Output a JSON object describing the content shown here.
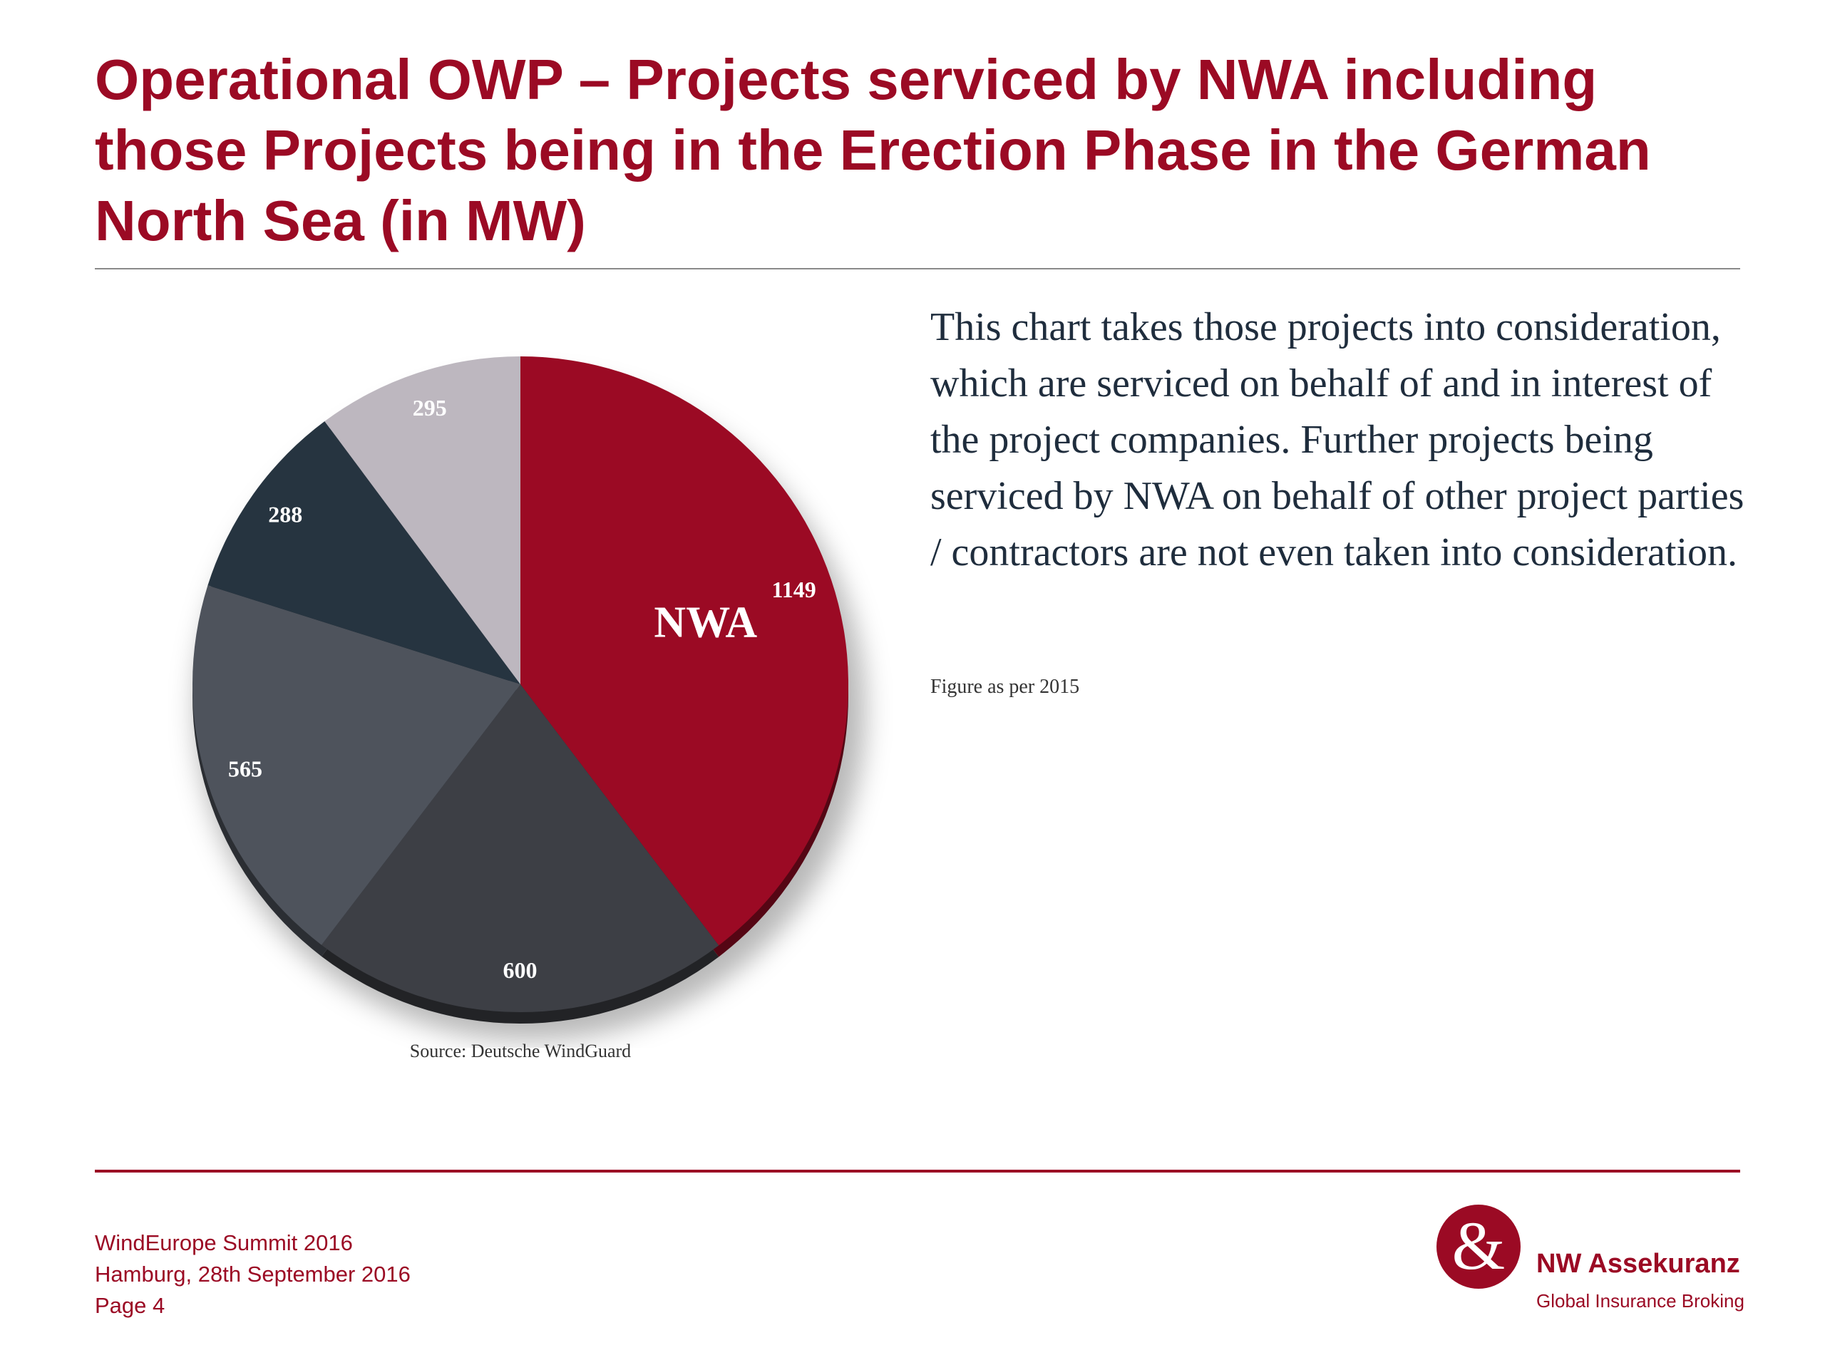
{
  "title": "Operational OWP – Projects serviced by NWA including those Projects being in the Erection Phase in the German North Sea (in MW)",
  "chart_data": {
    "type": "pie",
    "slices": [
      {
        "label": "1149",
        "value": 1149,
        "name": "NWA",
        "color": "#9b0a24"
      },
      {
        "label": "600",
        "value": 600,
        "color": "#3d3f45"
      },
      {
        "label": "565",
        "value": 565,
        "color": "#4e535c"
      },
      {
        "label": "288",
        "value": 288,
        "color": "#263440"
      },
      {
        "label": "295",
        "value": 295,
        "color": "#bdb7bf"
      }
    ],
    "source": "Source: Deutsche WindGuard"
  },
  "description": "This chart takes those projects into consideration, which are serviced on behalf of and in interest of the project companies. Further projects being serviced by NWA on behalf of other project parties / contractors are not even taken into consideration.",
  "figure_note": "Figure as per 2015",
  "footer": {
    "event": "WindEurope Summit 2016",
    "place_date": "Hamburg, 28th September 2016",
    "page": "Page 4"
  },
  "logo": {
    "symbol": "&",
    "name": "NW Assekuranz",
    "tagline": "Global Insurance Broking",
    "color": "#9b0a24"
  }
}
